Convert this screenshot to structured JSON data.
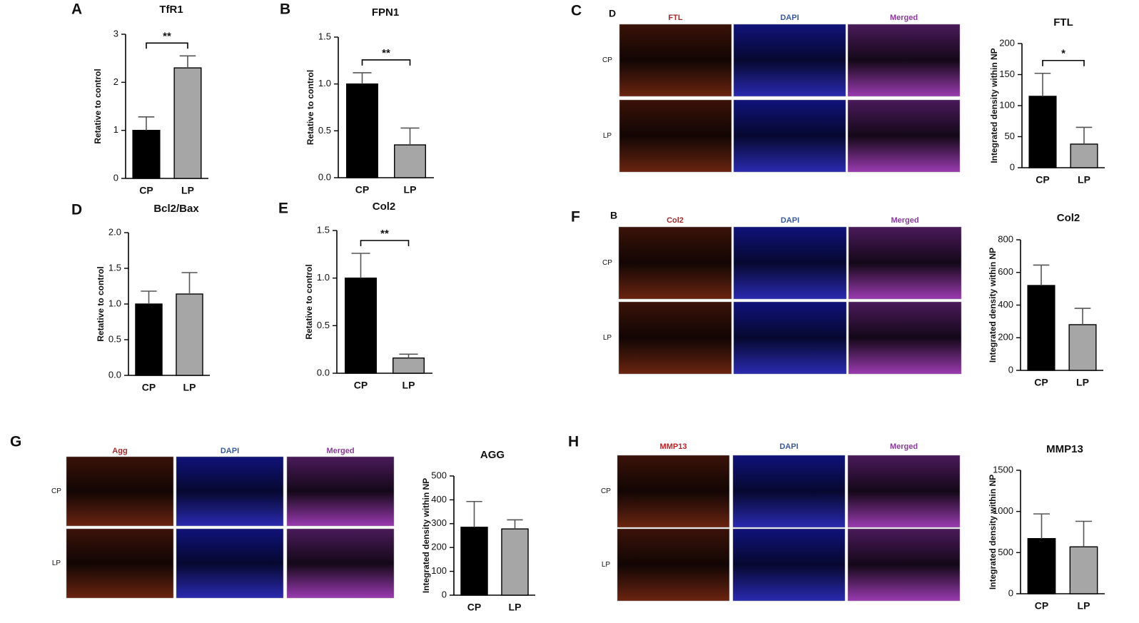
{
  "chart_data": [
    {
      "type": "bar",
      "panel": "A",
      "title": "TfR1",
      "ylabel": "Retative to control",
      "categories": [
        "CP",
        "LP"
      ],
      "values": [
        1.0,
        2.3
      ],
      "errors": [
        0.28,
        0.25
      ],
      "colors": [
        "#000000",
        "#a6a6a6"
      ],
      "ylim": [
        0,
        3
      ],
      "yticks": [
        0,
        1,
        2,
        3
      ],
      "significance": "**"
    },
    {
      "type": "bar",
      "panel": "B",
      "title": "FPN1",
      "ylabel": "Retative to control",
      "categories": [
        "CP",
        "LP"
      ],
      "values": [
        1.0,
        0.35
      ],
      "errors": [
        0.12,
        0.18
      ],
      "colors": [
        "#000000",
        "#a6a6a6"
      ],
      "ylim": [
        0,
        1.5
      ],
      "yticks": [
        {
          "value": 0,
          "label": "0.0"
        },
        0.5,
        {
          "value": 1,
          "label": "1.0"
        },
        1.5
      ],
      "significance": "**"
    },
    {
      "type": "bar",
      "panel": "D",
      "title": "Bcl2/Bax",
      "ylabel": "Retative to control",
      "categories": [
        "CP",
        "LP"
      ],
      "values": [
        1.0,
        1.14
      ],
      "errors": [
        0.18,
        0.3
      ],
      "colors": [
        "#000000",
        "#a6a6a6"
      ],
      "ylim": [
        0,
        2
      ],
      "yticks": [
        {
          "value": 0,
          "label": "0.0"
        },
        0.5,
        {
          "value": 1,
          "label": "1.0"
        },
        1.5,
        {
          "value": 2,
          "label": "2.0"
        }
      ]
    },
    {
      "type": "bar",
      "panel": "E",
      "title": "Col2",
      "ylabel": "Retative to control",
      "categories": [
        "CP",
        "LP"
      ],
      "values": [
        1.0,
        0.16
      ],
      "errors": [
        0.26,
        0.04
      ],
      "colors": [
        "#000000",
        "#a6a6a6"
      ],
      "ylim": [
        0,
        1.5
      ],
      "yticks": [
        {
          "value": 0,
          "label": "0.0"
        },
        0.5,
        {
          "value": 1,
          "label": "1.0"
        },
        1.5
      ],
      "significance": "**"
    },
    {
      "type": "bar",
      "title": "FTL",
      "ylabel": "Integrated density within NP",
      "categories": [
        "CP",
        "LP"
      ],
      "values": [
        115,
        38
      ],
      "errors": [
        37,
        27
      ],
      "colors": [
        "#000000",
        "#a6a6a6"
      ],
      "ylim": [
        0,
        200
      ],
      "yticks": [
        0,
        50,
        100,
        150,
        200
      ],
      "significance": "*"
    },
    {
      "type": "bar",
      "title": "Col2",
      "ylabel": "Integrated density within NP",
      "categories": [
        "CP",
        "LP"
      ],
      "values": [
        520,
        280
      ],
      "errors": [
        125,
        100
      ],
      "colors": [
        "#000000",
        "#a6a6a6"
      ],
      "ylim": [
        0,
        800
      ],
      "yticks": [
        0,
        200,
        400,
        600,
        800
      ]
    },
    {
      "type": "bar",
      "title": "AGG",
      "ylabel": "Integrated density within NP",
      "categories": [
        "CP",
        "LP"
      ],
      "values": [
        285,
        278
      ],
      "errors": [
        108,
        38
      ],
      "colors": [
        "#000000",
        "#a6a6a6"
      ],
      "ylim": [
        0,
        500
      ],
      "yticks": [
        0,
        100,
        200,
        300,
        400,
        500
      ]
    },
    {
      "type": "bar",
      "title": "MMP13",
      "ylabel": "Integrated density within NP",
      "categories": [
        "CP",
        "LP"
      ],
      "values": [
        670,
        570
      ],
      "errors": [
        300,
        310
      ],
      "colors": [
        "#000000",
        "#a6a6a6"
      ],
      "ylim": [
        0,
        1500
      ],
      "yticks": [
        0,
        500,
        1000,
        1500
      ]
    }
  ],
  "image_panels": [
    {
      "panel": "C",
      "label": "D",
      "channels": [
        "FTL",
        "DAPI",
        "Merged"
      ],
      "channel_colors": [
        "#a52a2a",
        "#3a5aa0",
        "#8a3a9a"
      ],
      "rows": [
        "CP",
        "LP"
      ]
    },
    {
      "panel": "F",
      "label": "B",
      "channels": [
        "Col2",
        "DAPI",
        "Merged"
      ],
      "channel_colors": [
        "#a52a2a",
        "#3a5aa0",
        "#8a3a9a"
      ],
      "rows": [
        "CP",
        "LP"
      ]
    },
    {
      "panel": "G",
      "channels": [
        "Agg",
        "DAPI",
        "Merged"
      ],
      "channel_colors": [
        "#a52a2a",
        "#3a5aa0",
        "#8a3a9a"
      ],
      "rows": [
        "CP",
        "LP"
      ]
    },
    {
      "panel": "H",
      "channels": [
        "MMP13",
        "DAPI",
        "Merged"
      ],
      "channel_colors": [
        "#c02020",
        "#3a5aa0",
        "#8a3a9a"
      ],
      "rows": [
        "CP",
        "LP"
      ]
    }
  ]
}
